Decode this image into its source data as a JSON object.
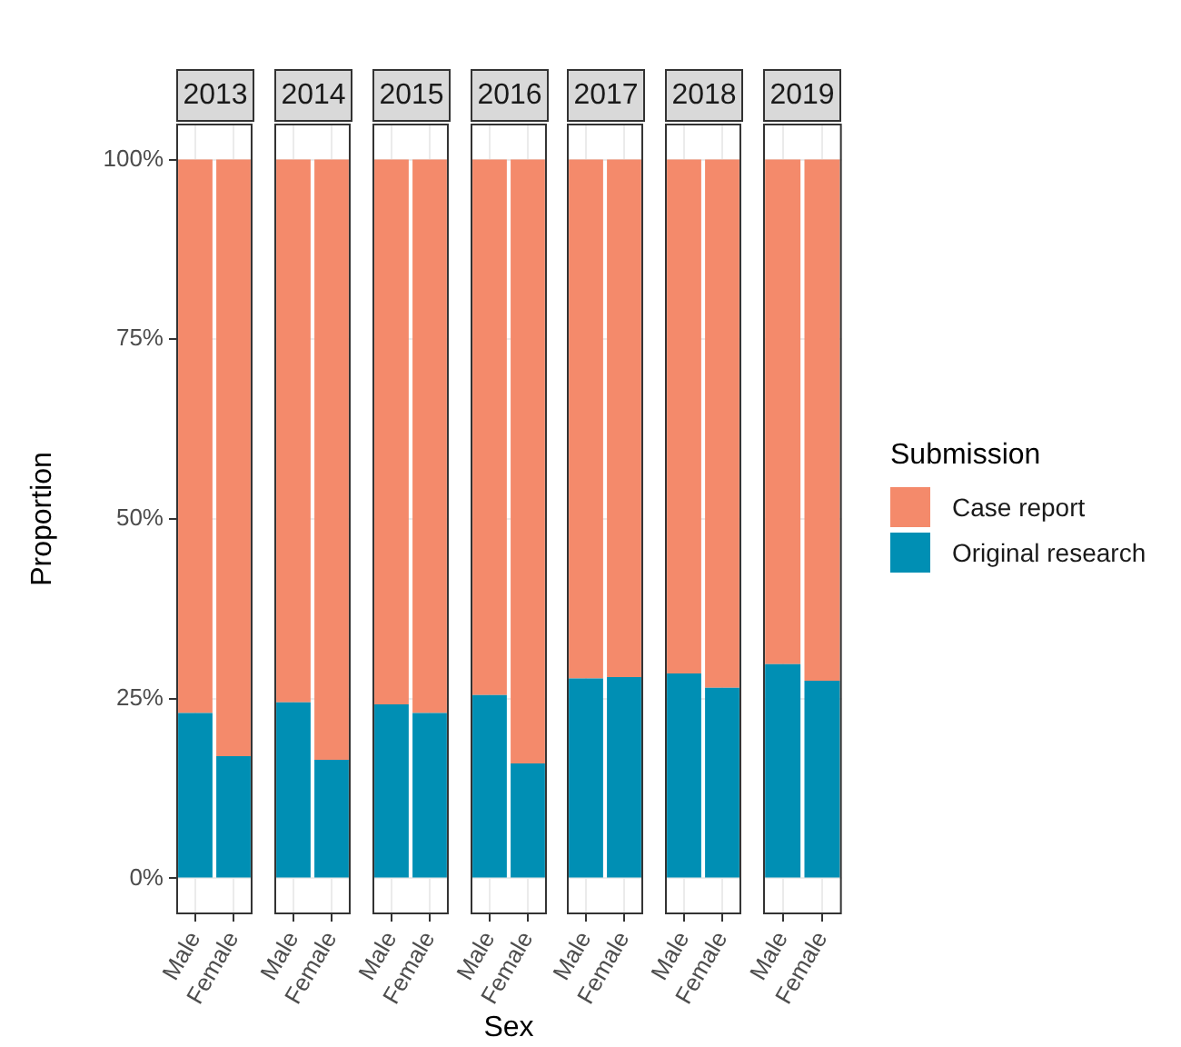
{
  "chart_data": [
    {
      "type": "bar",
      "title": "2013",
      "ylabel": "Proportion",
      "categories": [
        "Male",
        "Female"
      ],
      "stacked": true,
      "grid": true,
      "ylim": [
        -5,
        105
      ],
      "yticks": [
        {
          "value": 0,
          "label": "0%"
        },
        {
          "value": 25,
          "label": "25%"
        },
        {
          "value": 50,
          "label": "50%"
        },
        {
          "value": 75,
          "label": "75%"
        },
        {
          "value": 100,
          "label": "100%"
        }
      ],
      "series": [
        {
          "color": "#008fb4",
          "values": [
            23,
            17
          ]
        },
        {
          "color": "#f48a6b",
          "values": [
            77,
            83
          ]
        }
      ]
    },
    {
      "type": "bar",
      "title": "2014",
      "categories": [
        "Male",
        "Female"
      ],
      "stacked": true,
      "grid": true,
      "tick_labels": "x",
      "ylim": [
        -5,
        105
      ],
      "yticks": [
        0,
        25,
        50,
        75,
        100
      ],
      "series": [
        {
          "color": "#008fb4",
          "values": [
            24.5,
            16.5
          ]
        },
        {
          "color": "#f48a6b",
          "values": [
            75.5,
            83.5
          ]
        }
      ]
    },
    {
      "type": "bar",
      "title": "2015",
      "categories": [
        "Male",
        "Female"
      ],
      "stacked": true,
      "grid": true,
      "tick_labels": "x",
      "ylim": [
        -5,
        105
      ],
      "yticks": [
        0,
        25,
        50,
        75,
        100
      ],
      "series": [
        {
          "color": "#008fb4",
          "values": [
            24.2,
            23
          ]
        },
        {
          "color": "#f48a6b",
          "values": [
            75.8,
            77
          ]
        }
      ]
    },
    {
      "type": "bar",
      "title": "2016",
      "xlabel": "Sex",
      "categories": [
        "Male",
        "Female"
      ],
      "stacked": true,
      "grid": true,
      "tick_labels": "x",
      "ylim": [
        -5,
        105
      ],
      "yticks": [
        0,
        25,
        50,
        75,
        100
      ],
      "series": [
        {
          "color": "#008fb4",
          "values": [
            25.5,
            16
          ]
        },
        {
          "color": "#f48a6b",
          "values": [
            74.5,
            84
          ]
        }
      ]
    },
    {
      "type": "bar",
      "title": "2017",
      "categories": [
        "Male",
        "Female"
      ],
      "stacked": true,
      "grid": true,
      "tick_labels": "x",
      "ylim": [
        -5,
        105
      ],
      "yticks": [
        0,
        25,
        50,
        75,
        100
      ],
      "series": [
        {
          "color": "#008fb4",
          "values": [
            27.8,
            28
          ]
        },
        {
          "color": "#f48a6b",
          "values": [
            72.2,
            72
          ]
        }
      ]
    },
    {
      "type": "bar",
      "title": "2018",
      "categories": [
        "Male",
        "Female"
      ],
      "stacked": true,
      "grid": true,
      "tick_labels": "x",
      "ylim": [
        -5,
        105
      ],
      "yticks": [
        0,
        25,
        50,
        75,
        100
      ],
      "series": [
        {
          "color": "#008fb4",
          "values": [
            28.5,
            26.5
          ]
        },
        {
          "color": "#f48a6b",
          "values": [
            71.5,
            73.5
          ]
        }
      ]
    },
    {
      "type": "bar",
      "title": "2019",
      "legend": "right",
      "legend_title": "Submission",
      "categories": [
        "Male",
        "Female"
      ],
      "stacked": true,
      "grid": true,
      "tick_labels": "x",
      "ylim": [
        -5,
        105
      ],
      "yticks": [
        0,
        25,
        50,
        75,
        100
      ],
      "series": [
        {
          "name": "Original research",
          "color": "#008fb4",
          "values": [
            29.8,
            27.5
          ]
        },
        {
          "name": "Case report",
          "color": "#f48a6b",
          "values": [
            70.2,
            72.5
          ]
        }
      ]
    }
  ]
}
